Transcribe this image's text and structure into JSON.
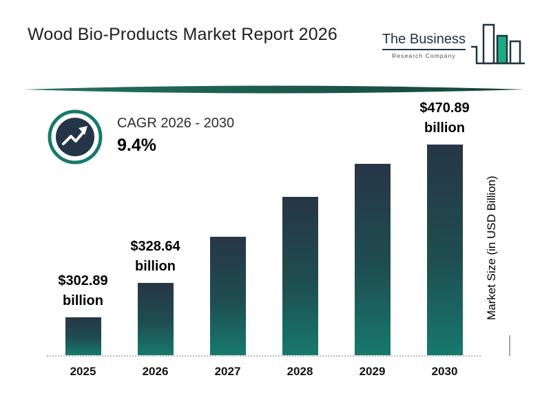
{
  "header": {
    "title": "Wood Bio-Products Market Report 2026",
    "logo": {
      "name": "The Business",
      "subtitle": "Research Company"
    }
  },
  "cagr": {
    "label": "CAGR 2026 - 2030",
    "value": "9.4%"
  },
  "chart_data": {
    "type": "bar",
    "title": "Wood Bio-Products Market Report 2026",
    "categories": [
      "2025",
      "2026",
      "2027",
      "2028",
      "2029",
      "2030"
    ],
    "values": [
      302.89,
      328.64,
      359.53,
      393.33,
      430.3,
      470.89
    ],
    "value_unit": "USD billion",
    "value_labels": [
      {
        "amount": "$302.89",
        "unit": "billion"
      },
      {
        "amount": "$328.64",
        "unit": "billion"
      },
      null,
      null,
      null,
      {
        "amount": "$470.89",
        "unit": "billion"
      }
    ],
    "ylabel": "Market Size (in USD Billion)",
    "xlabel": "",
    "grid": false,
    "legend": "none",
    "cagr_pct": 9.4,
    "colors": {
      "bar_top": "#273645",
      "bar_bottom": "#17796d",
      "accent_teal": "#17796d",
      "navy": "#1e3340"
    }
  }
}
